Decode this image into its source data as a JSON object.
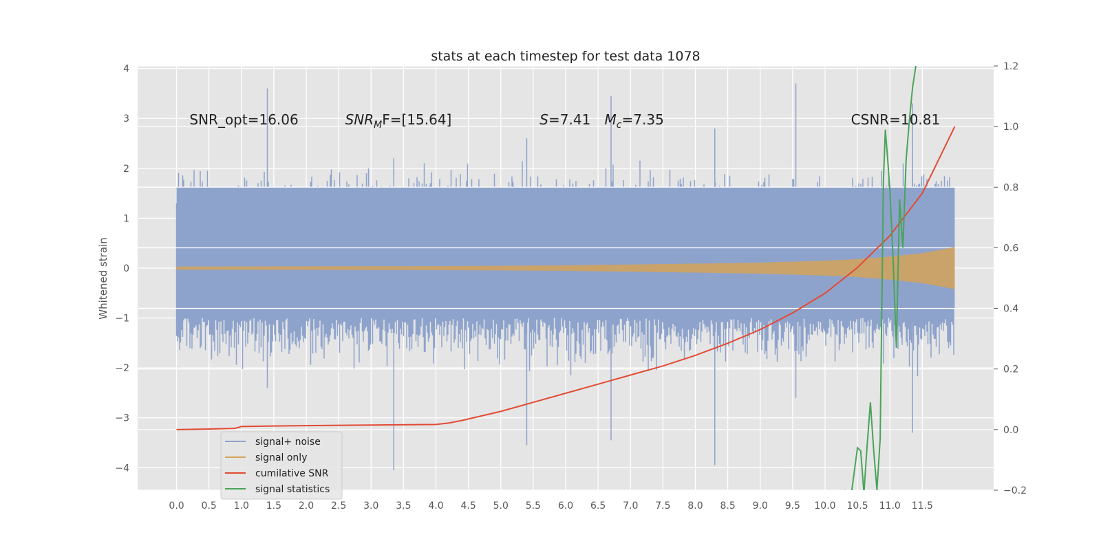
{
  "chart_data": {
    "type": "line",
    "title": "stats at each timestep for test data 1078",
    "xlabel": "",
    "ylabel": "Whitened strain",
    "xlim": [
      -0.6,
      12.6
    ],
    "ylim": [
      -4.45,
      4.05
    ],
    "y2lim": [
      -0.2,
      1.2
    ],
    "x_ticks": [
      "0.0",
      "0.5",
      "1.0",
      "1.5",
      "2.0",
      "2.5",
      "3.0",
      "3.5",
      "4.0",
      "4.5",
      "5.0",
      "5.5",
      "6.0",
      "6.5",
      "7.0",
      "7.5",
      "8.0",
      "8.5",
      "9.0",
      "9.5",
      "10.0",
      "10.5",
      "11.0",
      "11.5"
    ],
    "y_ticks": [
      -4,
      -3,
      -2,
      -1,
      0,
      1,
      2,
      3,
      4
    ],
    "y2_ticks": [
      -0.2,
      0.0,
      0.2,
      0.4,
      0.6,
      0.8,
      1.0,
      1.2
    ],
    "grid": true,
    "legend_position": "bottom-left",
    "annotations": [
      {
        "id": "snr-opt",
        "text": "SNR_opt=16.06",
        "x": 0.2,
        "y": 2.88
      },
      {
        "id": "snr-mf",
        "prefix": "SNR",
        "sub": "M",
        "suffix": "F=[15.64]",
        "x": 2.6,
        "y": 2.88
      },
      {
        "id": "s-stat",
        "prefix": "S",
        "suffix": "=7.41",
        "x": 5.6,
        "y": 2.88
      },
      {
        "id": "mc",
        "prefix": "M",
        "sub": "c",
        "suffix": "=7.35",
        "x": 6.6,
        "y": 2.88
      },
      {
        "id": "csnr",
        "text": "CSNR=10.81",
        "x": 10.4,
        "y": 2.88
      }
    ],
    "series": [
      {
        "name": "signal+ noise",
        "axis": "left",
        "color": "#8ea3cb",
        "x_range": [
          0.0,
          12.0
        ],
        "envelope_mean": 1.0,
        "envelope_max_peak": 3.6,
        "envelope_min_peak": -4.05
      },
      {
        "name": "signal only",
        "axis": "left",
        "color": "#d4a359",
        "x": [
          0.0,
          2.0,
          4.0,
          6.0,
          8.0,
          9.0,
          10.0,
          10.5,
          11.0,
          11.5,
          12.0
        ],
        "amplitude": [
          0.03,
          0.035,
          0.04,
          0.055,
          0.09,
          0.11,
          0.15,
          0.18,
          0.23,
          0.3,
          0.42
        ]
      },
      {
        "name": "cumilative SNR",
        "axis": "right",
        "color": "#e24a33",
        "x": [
          0.0,
          0.5,
          0.9,
          1.0,
          1.5,
          2.0,
          3.0,
          4.0,
          4.2,
          4.4,
          5.0,
          5.5,
          6.0,
          6.5,
          7.0,
          7.5,
          8.0,
          8.5,
          9.0,
          9.5,
          10.0,
          10.5,
          11.0,
          11.5,
          12.0
        ],
        "y": [
          0.0,
          0.002,
          0.004,
          0.01,
          0.012,
          0.013,
          0.015,
          0.017,
          0.022,
          0.03,
          0.06,
          0.09,
          0.12,
          0.15,
          0.18,
          0.21,
          0.245,
          0.285,
          0.33,
          0.385,
          0.45,
          0.535,
          0.64,
          0.78,
          1.0
        ]
      },
      {
        "name": "signal statistics",
        "axis": "right",
        "color": "#4aa35a",
        "x": [
          10.3,
          10.4,
          10.45,
          10.5,
          10.55,
          10.6,
          10.65,
          10.7,
          10.75,
          10.8,
          10.85,
          10.9,
          10.93,
          10.97,
          11.0,
          11.05,
          11.1,
          11.15,
          11.2,
          11.25,
          11.3,
          11.35,
          11.4
        ],
        "y": [
          -0.2,
          -0.22,
          -0.14,
          -0.06,
          -0.07,
          -0.21,
          -0.05,
          0.09,
          -0.07,
          -0.2,
          -0.03,
          0.82,
          0.99,
          0.88,
          0.79,
          0.56,
          0.27,
          0.76,
          0.6,
          0.89,
          1.02,
          1.13,
          1.2
        ]
      }
    ]
  }
}
